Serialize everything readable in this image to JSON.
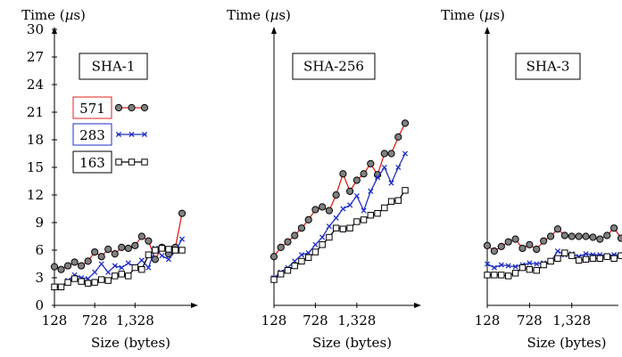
{
  "chart_data": [
    {
      "type": "line",
      "title": "SHA-1",
      "ylabel": "Time (µs)",
      "xlabel": "Size (bytes)",
      "ylim": [
        0,
        31
      ],
      "yticks": [
        0,
        3,
        6,
        9,
        12,
        15,
        18,
        21,
        24,
        27,
        30
      ],
      "xticks": [
        128,
        728,
        1328
      ],
      "xtick_labels": [
        "128",
        "728",
        "1,328"
      ],
      "legend": {
        "placement": "left"
      },
      "x": [
        128,
        228,
        328,
        428,
        528,
        628,
        728,
        828,
        928,
        1028,
        1128,
        1228,
        1328,
        1428,
        1528,
        1628,
        1728,
        1828,
        1928,
        2028
      ],
      "series": [
        {
          "name": "571",
          "color": "#e0201b",
          "marker": "circle",
          "values": [
            4.2,
            3.9,
            4.3,
            4.7,
            4.3,
            4.8,
            5.8,
            5.3,
            6.1,
            5.6,
            6.3,
            6.2,
            6.5,
            7.5,
            7.0,
            5.0,
            6.3,
            5.6,
            6.3,
            10.0
          ]
        },
        {
          "name": "283",
          "color": "#1f2fc4",
          "marker": "x",
          "values": [
            2.1,
            2.0,
            2.7,
            3.3,
            3.0,
            2.9,
            3.6,
            4.5,
            3.6,
            4.3,
            4.1,
            4.6,
            4.2,
            4.9,
            4.1,
            6.2,
            5.4,
            5.0,
            5.9,
            7.2
          ]
        },
        {
          "name": "163",
          "color": "#000000",
          "marker": "square",
          "values": [
            2.0,
            2.0,
            2.5,
            2.9,
            2.6,
            2.4,
            2.5,
            2.8,
            2.7,
            3.2,
            3.4,
            3.2,
            4.1,
            3.9,
            5.5,
            6.0,
            6.2,
            6.1,
            6.0,
            6.0
          ]
        }
      ]
    },
    {
      "type": "line",
      "title": "SHA-256",
      "ylabel": "Time (µs)",
      "xlabel": "Size (bytes)",
      "ylim": [
        0,
        31
      ],
      "xticks": [
        128,
        728,
        1328
      ],
      "xtick_labels": [
        "128",
        "728",
        "1,328"
      ],
      "x": [
        128,
        228,
        328,
        428,
        528,
        628,
        728,
        828,
        928,
        1028,
        1128,
        1228,
        1328,
        1428,
        1528,
        1628,
        1728,
        1828,
        1928,
        2028
      ],
      "series": [
        {
          "name": "571",
          "color": "#e0201b",
          "marker": "circle",
          "values": [
            5.3,
            6.3,
            6.9,
            7.6,
            8.4,
            9.3,
            10.4,
            10.7,
            10.3,
            12.0,
            14.3,
            12.4,
            13.6,
            14.3,
            15.4,
            14.2,
            16.5,
            16.5,
            18.3,
            19.8
          ]
        },
        {
          "name": "283",
          "color": "#1f2fc4",
          "marker": "x",
          "values": [
            3.0,
            3.6,
            4.1,
            4.8,
            5.5,
            5.7,
            6.6,
            7.4,
            8.6,
            9.5,
            10.5,
            10.9,
            11.9,
            10.3,
            12.4,
            13.9,
            15.0,
            13.3,
            15.0,
            16.5
          ]
        },
        {
          "name": "163",
          "color": "#000000",
          "marker": "square",
          "values": [
            2.8,
            3.4,
            3.8,
            4.3,
            4.8,
            5.2,
            5.8,
            6.6,
            7.4,
            8.4,
            8.3,
            8.4,
            9.1,
            9.3,
            9.8,
            10.0,
            10.6,
            11.3,
            11.4,
            12.5
          ]
        }
      ]
    },
    {
      "type": "line",
      "title": "SHA-3",
      "ylabel": "Time (µs)",
      "xlabel": "Size (bytes)",
      "ylim": [
        0,
        31
      ],
      "xticks": [
        128,
        728,
        1328
      ],
      "xtick_labels": [
        "128",
        "728",
        "1,328"
      ],
      "x": [
        128,
        228,
        328,
        428,
        528,
        628,
        728,
        828,
        928,
        1028,
        1128,
        1228,
        1328,
        1428,
        1528,
        1628,
        1728,
        1828,
        1928,
        2028
      ],
      "series": [
        {
          "name": "571",
          "color": "#e0201b",
          "marker": "circle",
          "values": [
            6.5,
            5.9,
            6.4,
            6.9,
            7.2,
            6.2,
            6.6,
            6.1,
            7.0,
            7.5,
            8.3,
            7.6,
            7.5,
            7.5,
            7.5,
            7.4,
            7.2,
            7.6,
            8.4,
            7.3
          ]
        },
        {
          "name": "283",
          "color": "#1f2fc4",
          "marker": "x",
          "values": [
            4.5,
            4.1,
            4.4,
            4.3,
            4.2,
            4.4,
            4.6,
            4.5,
            4.6,
            4.7,
            5.9,
            5.5,
            5.6,
            5.3,
            5.6,
            5.5,
            5.5,
            5.4,
            5.5,
            5.5
          ]
        },
        {
          "name": "163",
          "color": "#000000",
          "marker": "square",
          "values": [
            3.3,
            3.3,
            3.3,
            3.2,
            3.5,
            4.1,
            3.9,
            3.8,
            4.4,
            4.8,
            5.1,
            5.7,
            5.4,
            4.9,
            5.0,
            5.1,
            5.1,
            5.3,
            5.1,
            5.4
          ]
        }
      ]
    }
  ]
}
